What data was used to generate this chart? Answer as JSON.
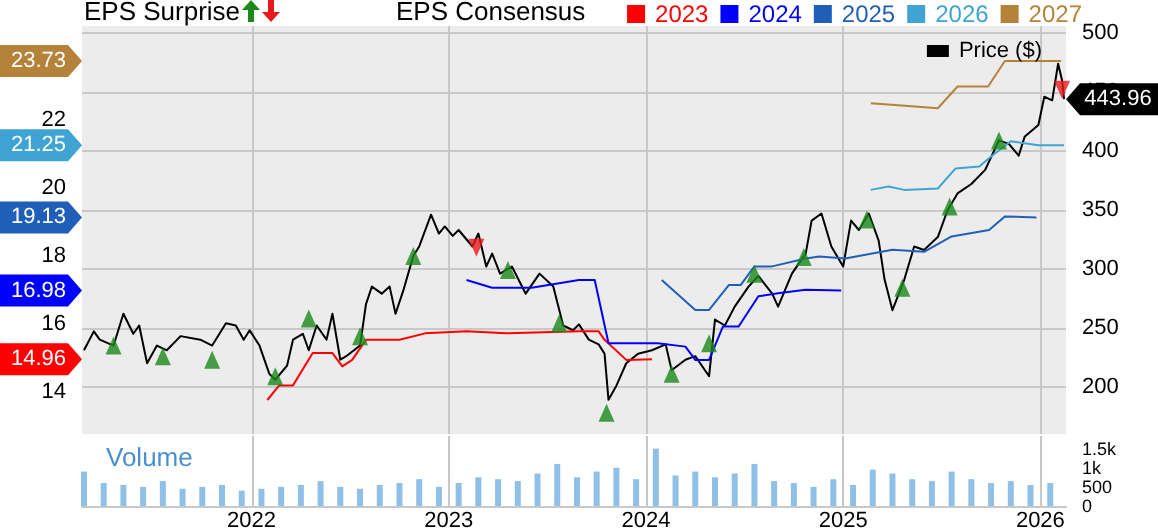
{
  "chart_data": [
    {
      "type": "line",
      "legend_title": "EPS Consensus",
      "legend": "top right",
      "grid": true,
      "tick_labels": "y",
      "annotations": [
        "EPS Surprise"
      ],
      "xlim": [
        2021.14,
        2026.13
      ],
      "xticks": [
        2022,
        2023,
        2024,
        2025,
        2026
      ],
      "ylim": [
        12.76,
        24.76
      ],
      "yticks": [
        14,
        14.96,
        16,
        16.98,
        18,
        19.13,
        20,
        21.25,
        22,
        23.73
      ],
      "y2lim": [
        160,
        506
      ],
      "y2ticks": [
        200,
        250,
        300,
        350,
        400,
        450,
        500
      ],
      "series": [
        {
          "name": "Price ($)",
          "type": "line",
          "axis": "y2",
          "color": "#000000",
          "x": [
            2021.15,
            2021.2,
            2021.23,
            2021.3,
            2021.35,
            2021.4,
            2021.43,
            2021.47,
            2021.52,
            2021.57,
            2021.64,
            2021.74,
            2021.8,
            2021.87,
            2021.92,
            2021.96,
            2021.99,
            2022.04,
            2022.09,
            2022.12,
            2022.18,
            2022.21,
            2022.26,
            2022.29,
            2022.33,
            2022.38,
            2022.41,
            2022.45,
            2022.48,
            2022.55,
            2022.58,
            2022.61,
            2022.66,
            2022.7,
            2022.73,
            2022.77,
            2022.82,
            2022.85,
            2022.91,
            2022.95,
            2022.98,
            2023.02,
            2023.05,
            2023.12,
            2023.15,
            2023.19,
            2023.22,
            2023.26,
            2023.32,
            2023.39,
            2023.46,
            2023.53,
            2023.58,
            2023.63,
            2023.66,
            2023.71,
            2023.76,
            2023.79,
            2023.81,
            2023.85,
            2023.9,
            2023.96,
            2024.03,
            2024.1,
            2024.13,
            2024.2,
            2024.25,
            2024.32,
            2024.35,
            2024.4,
            2024.45,
            2024.52,
            2024.57,
            2024.64,
            2024.67,
            2024.74,
            2024.81,
            2024.84,
            2024.89,
            2024.94,
            2025.0,
            2025.04,
            2025.08,
            2025.13,
            2025.18,
            2025.21,
            2025.25,
            2025.31,
            2025.36,
            2025.41,
            2025.48,
            2025.53,
            2025.58,
            2025.65,
            2025.72,
            2025.79,
            2025.84,
            2025.89,
            2025.92,
            2025.99,
            2026.02,
            2026.06,
            2026.09,
            2026.11,
            2026.12
          ],
          "values": [
            231,
            247,
            240,
            235,
            262,
            245,
            252,
            220,
            235,
            231,
            243,
            240,
            235,
            254,
            252,
            240,
            248,
            235,
            211,
            206,
            218,
            240,
            245,
            231,
            252,
            240,
            262,
            223,
            226,
            235,
            270,
            285,
            279,
            285,
            262,
            282,
            311,
            319,
            346,
            330,
            336,
            328,
            333,
            319,
            330,
            302,
            313,
            296,
            302,
            279,
            296,
            285,
            252,
            248,
            253,
            240,
            236,
            228,
            189,
            201,
            220,
            228,
            231,
            236,
            214,
            223,
            226,
            209,
            257,
            252,
            268,
            285,
            294,
            279,
            268,
            296,
            313,
            341,
            347,
            319,
            302,
            341,
            333,
            347,
            324,
            291,
            265,
            291,
            319,
            316,
            327,
            350,
            364,
            372,
            384,
            409,
            406,
            396,
            412,
            422,
            446,
            443,
            474,
            460,
            443.96
          ],
          "value_labels": [
            null,
            null,
            null,
            null,
            null,
            null,
            null,
            null,
            null,
            null,
            null,
            null,
            null,
            null,
            null,
            null,
            null,
            null,
            null,
            null,
            null,
            null,
            null,
            null,
            null,
            null,
            null,
            null,
            null,
            null,
            null,
            null,
            null,
            null,
            null,
            null,
            null,
            null,
            null,
            null,
            null,
            null,
            null,
            null,
            null,
            null,
            null,
            null,
            null,
            null,
            null,
            null,
            null,
            null,
            null,
            null,
            null,
            null,
            null,
            null,
            null,
            null,
            null,
            null,
            null,
            null,
            null,
            null,
            null,
            null,
            null,
            null,
            null,
            null,
            null,
            null,
            null,
            null,
            null,
            null,
            null,
            null,
            null,
            null,
            null,
            null,
            null,
            null,
            null,
            null,
            null,
            null,
            null,
            null,
            null,
            null,
            null,
            null,
            null,
            null,
            null,
            null,
            null,
            null,
            "443.96"
          ]
        },
        {
          "name": "2023",
          "type": "line",
          "axis": "y",
          "color": "#ff0000",
          "x": [
            2022.08,
            2022.14,
            2022.21,
            2022.31,
            2022.41,
            2022.46,
            2022.51,
            2022.58,
            2022.75,
            2022.88,
            2023.09,
            2023.29,
            2023.66,
            2023.76,
            2023.79,
            2023.9,
            2024.03
          ],
          "values": [
            13.76,
            14.19,
            14.19,
            15.14,
            15.14,
            14.75,
            14.94,
            15.53,
            15.53,
            15.72,
            15.78,
            15.72,
            15.78,
            15.78,
            15.53,
            14.94,
            14.96
          ]
        },
        {
          "name": "2024",
          "type": "line",
          "axis": "y",
          "color": "#0000ff",
          "x": [
            2023.09,
            2023.22,
            2023.42,
            2023.66,
            2023.74,
            2023.81,
            2024.06,
            2024.2,
            2024.25,
            2024.32,
            2024.39,
            2024.47,
            2024.57,
            2024.67,
            2024.81,
            2024.99
          ],
          "values": [
            17.29,
            17.06,
            17.06,
            17.29,
            17.29,
            15.43,
            15.43,
            15.33,
            14.94,
            14.94,
            15.92,
            15.92,
            16.81,
            16.9,
            17.0,
            16.98
          ]
        },
        {
          "name": "2025",
          "type": "line",
          "axis": "y",
          "color": "#1f5fb8",
          "x": [
            2024.08,
            2024.25,
            2024.32,
            2024.42,
            2024.48,
            2024.55,
            2024.64,
            2024.81,
            2024.88,
            2025.01,
            2025.25,
            2025.41,
            2025.55,
            2025.74,
            2025.82,
            2025.98
          ],
          "values": [
            17.29,
            16.41,
            16.41,
            17.14,
            17.14,
            17.69,
            17.69,
            17.92,
            17.98,
            17.92,
            18.18,
            18.12,
            18.57,
            18.76,
            19.16,
            19.13
          ]
        },
        {
          "name": "2026",
          "type": "line",
          "axis": "y",
          "color": "#3fa3d4",
          "x": [
            2025.14,
            2025.23,
            2025.31,
            2025.48,
            2025.57,
            2025.69,
            2025.75,
            2025.85,
            2025.99,
            2026.12
          ],
          "values": [
            19.94,
            20.04,
            19.94,
            19.98,
            20.57,
            20.63,
            20.92,
            21.37,
            21.25,
            21.25
          ]
        },
        {
          "name": "2027",
          "type": "line",
          "axis": "y",
          "color": "#b5823a",
          "x": [
            2025.14,
            2025.28,
            2025.48,
            2025.58,
            2025.735,
            2025.82,
            2026.105
          ],
          "values": [
            22.49,
            22.43,
            22.34,
            22.98,
            22.98,
            23.73,
            23.73
          ]
        },
        {
          "type": "scatter",
          "axis": "y2",
          "marker": "triangle",
          "color": "#1a8a1a",
          "x": [
            2021.3,
            2021.55,
            2021.8,
            2022.12,
            2022.29,
            2022.55,
            2022.82,
            2023.3,
            2023.56,
            2023.8,
            2024.13,
            2024.32,
            2024.55,
            2024.8,
            2025.12,
            2025.3,
            2025.54,
            2025.79
          ],
          "values": [
            235,
            226,
            223,
            209,
            258,
            243,
            311,
            299,
            254,
            178,
            211,
            237,
            296,
            310,
            342,
            284,
            353,
            409
          ]
        },
        {
          "type": "scatter",
          "axis": "y2",
          "marker": "triangle",
          "color": "#e8191a",
          "x": [
            2023.14,
            2026.11
          ],
          "values": [
            318,
            452
          ]
        }
      ]
    },
    {
      "type": "bar",
      "title": "Volume",
      "color": "#8fc0e8",
      "grid": "x",
      "xlim": [
        2021.14,
        2026.13
      ],
      "xticks": [
        2022,
        2023,
        2024,
        2025,
        2026
      ],
      "ylim": [
        0,
        1830
      ],
      "yticks": [
        0,
        500,
        {
          "value": 1000,
          "label": "1k"
        },
        {
          "value": 1500,
          "label": "1.5k"
        }
      ],
      "x": [
        2021.15,
        2021.25,
        2021.35,
        2021.45,
        2021.55,
        2021.65,
        2021.75,
        2021.85,
        2021.95,
        2022.05,
        2022.15,
        2022.25,
        2022.35,
        2022.45,
        2022.55,
        2022.65,
        2022.75,
        2022.85,
        2022.95,
        2023.05,
        2023.15,
        2023.25,
        2023.35,
        2023.45,
        2023.55,
        2023.65,
        2023.75,
        2023.85,
        2023.95,
        2024.05,
        2024.15,
        2024.25,
        2024.35,
        2024.45,
        2024.55,
        2024.65,
        2024.75,
        2024.85,
        2024.95,
        2025.05,
        2025.15,
        2025.25,
        2025.35,
        2025.45,
        2025.55,
        2025.65,
        2025.75,
        2025.85,
        2025.95,
        2026.05
      ],
      "values": [
        900,
        600,
        550,
        500,
        650,
        450,
        500,
        550,
        400,
        450,
        500,
        550,
        650,
        500,
        450,
        550,
        600,
        700,
        500,
        600,
        750,
        700,
        650,
        850,
        1100,
        750,
        900,
        1000,
        700,
        1500,
        800,
        900,
        750,
        850,
        1100,
        650,
        600,
        500,
        700,
        550,
        950,
        850,
        700,
        650,
        900,
        700,
        600,
        650,
        550,
        600
      ]
    }
  ]
}
